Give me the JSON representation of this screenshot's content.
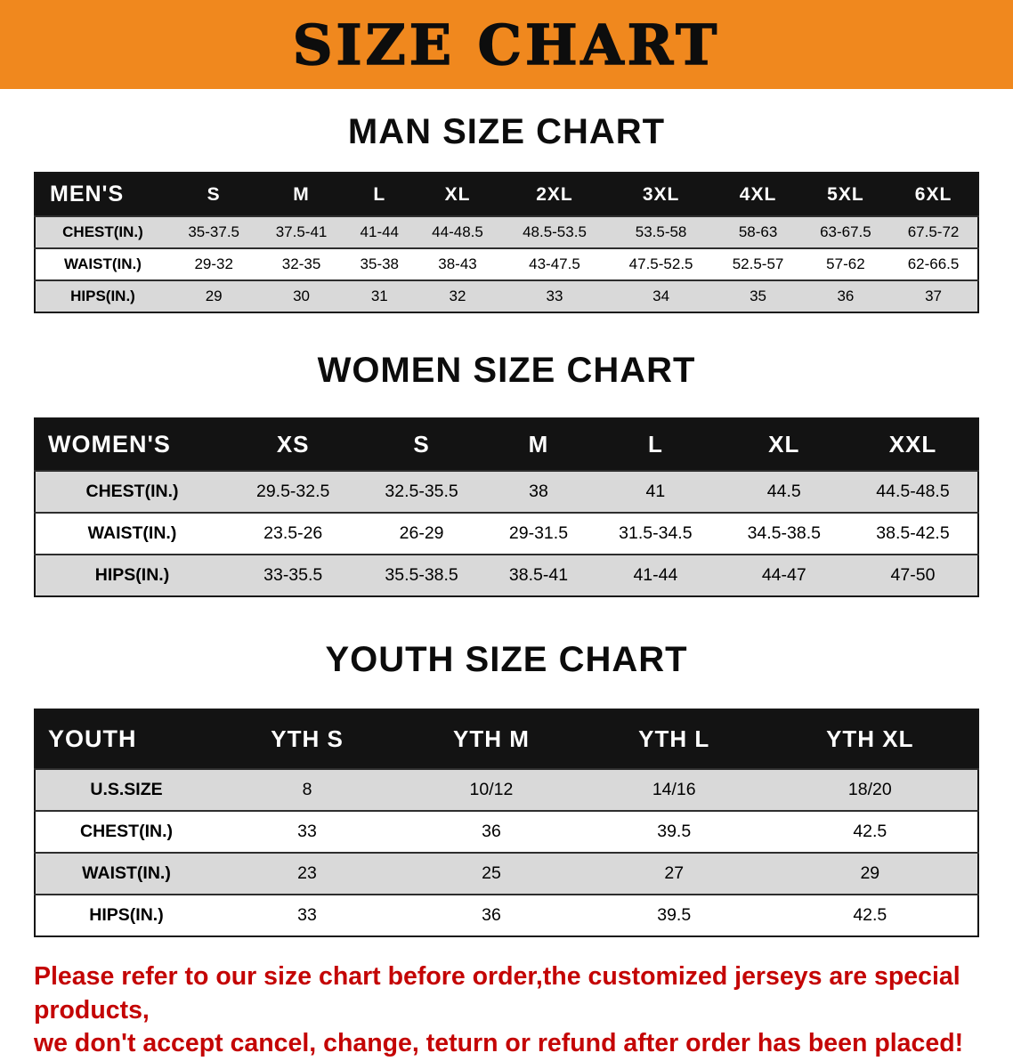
{
  "banner": {
    "title": "SIZE CHART",
    "bg_color": "#f0881e",
    "text_color": "#0d0d0d"
  },
  "sections": [
    {
      "id": "men",
      "heading": "MAN SIZE CHART",
      "table": {
        "title": "MEN'S",
        "columns": [
          "S",
          "M",
          "L",
          "XL",
          "2XL",
          "3XL",
          "4XL",
          "5XL",
          "6XL"
        ],
        "rows": [
          {
            "label": "CHEST(IN.)",
            "values": [
              "35-37.5",
              "37.5-41",
              "41-44",
              "44-48.5",
              "48.5-53.5",
              "53.5-58",
              "58-63",
              "63-67.5",
              "67.5-72"
            ]
          },
          {
            "label": "WAIST(IN.)",
            "values": [
              "29-32",
              "32-35",
              "35-38",
              "38-43",
              "43-47.5",
              "47.5-52.5",
              "52.5-57",
              "57-62",
              "62-66.5"
            ]
          },
          {
            "label": "HIPS(IN.)",
            "values": [
              "29",
              "30",
              "31",
              "32",
              "33",
              "34",
              "35",
              "36",
              "37"
            ]
          }
        ]
      }
    },
    {
      "id": "women",
      "heading": "WOMEN SIZE CHART",
      "table": {
        "title": "WOMEN'S",
        "columns": [
          "XS",
          "S",
          "M",
          "L",
          "XL",
          "XXL"
        ],
        "rows": [
          {
            "label": "CHEST(IN.)",
            "values": [
              "29.5-32.5",
              "32.5-35.5",
              "38",
              "41",
              "44.5",
              "44.5-48.5"
            ]
          },
          {
            "label": "WAIST(IN.)",
            "values": [
              "23.5-26",
              "26-29",
              "29-31.5",
              "31.5-34.5",
              "34.5-38.5",
              "38.5-42.5"
            ]
          },
          {
            "label": "HIPS(IN.)",
            "values": [
              "33-35.5",
              "35.5-38.5",
              "38.5-41",
              "41-44",
              "44-47",
              "47-50"
            ]
          }
        ]
      }
    },
    {
      "id": "youth",
      "heading": "YOUTH SIZE CHART",
      "table": {
        "title": "YOUTH",
        "columns": [
          "YTH S",
          "YTH M",
          "YTH L",
          "YTH XL"
        ],
        "rows": [
          {
            "label": "U.S.SIZE",
            "values": [
              "8",
              "10/12",
              "14/16",
              "18/20"
            ]
          },
          {
            "label": "CHEST(IN.)",
            "values": [
              "33",
              "36",
              "39.5",
              "42.5"
            ]
          },
          {
            "label": "WAIST(IN.)",
            "values": [
              "23",
              "25",
              "27",
              "29"
            ]
          },
          {
            "label": "HIPS(IN.)",
            "values": [
              "33",
              "36",
              "39.5",
              "42.5"
            ]
          }
        ]
      }
    }
  ],
  "footer": {
    "line1": "Please refer to our size chart before order,the customized jerseys are special products,",
    "line2": "we don't accept cancel, change, teturn or refund after order has been placed!",
    "text_color": "#c40505"
  }
}
